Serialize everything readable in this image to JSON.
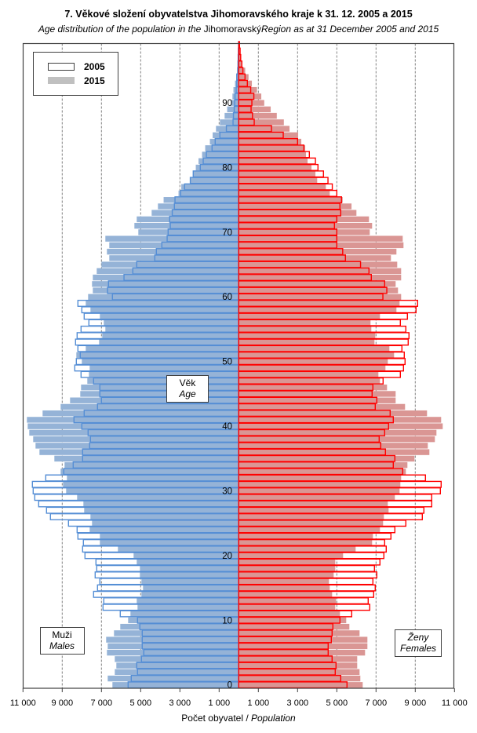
{
  "title": "7. Věkové složení obyvatelstva  Jihomoravského  kraje k 31. 12. 2005 a 2015",
  "subtitle": {
    "part1": "Age distribution of the population  in the ",
    "part2": "Jihomoravský",
    "part3": "Region as at 31 December 2005 and 2015"
  },
  "legend": {
    "item_2005": "2005",
    "item_2015": "2015"
  },
  "labels": {
    "age_cz": "Věk",
    "age_en": "Age",
    "males_cz": "Muži",
    "males_en": "Males",
    "females_cz": "Ženy",
    "females_en": "Females"
  },
  "xaxis": {
    "label_cz": "Počet obyvatel / ",
    "label_en": "Population"
  },
  "colors": {
    "male_2015_fill": "#95b3d7",
    "male_2005_outline": "#558ed5",
    "female_2015_fill": "#da9694",
    "female_2005_outline": "#ff0000",
    "legend_2015": "#c0c0c0"
  },
  "chart_data": {
    "type": "bar",
    "orientation": "horizontal population pyramid",
    "title": "7. Věkové složení obyvatelstva  Jihomoravského  kraje k 31. 12. 2005 a 2015",
    "xlabel": "Počet obyvatel / Population",
    "ylabel": "Věk / Age",
    "xlim": [
      -11000,
      11000
    ],
    "x_tick_labels_left": [
      "11 000",
      "9 000",
      "7 000",
      "5 000",
      "3 000",
      "1 000"
    ],
    "x_tick_values_left": [
      11000,
      9000,
      7000,
      5000,
      3000,
      1000
    ],
    "x_tick_labels_right": [
      "1 000",
      "3 000",
      "5 000",
      "7 000",
      "9 000",
      "11 000"
    ],
    "x_tick_values_right": [
      1000,
      3000,
      5000,
      7000,
      9000,
      11000
    ],
    "y_tick_labels": [
      "0",
      "10",
      "20",
      "30",
      "40",
      "50",
      "60",
      "70",
      "80",
      "90"
    ],
    "y_tick_values": [
      0,
      10,
      20,
      30,
      40,
      50,
      60,
      70,
      80,
      90
    ],
    "grid": "vertical dashed",
    "legend_position": "top-left",
    "ages": [
      0,
      1,
      2,
      3,
      4,
      5,
      6,
      7,
      8,
      9,
      10,
      11,
      12,
      13,
      14,
      15,
      16,
      17,
      18,
      19,
      20,
      21,
      22,
      23,
      24,
      25,
      26,
      27,
      28,
      29,
      30,
      31,
      32,
      33,
      34,
      35,
      36,
      37,
      38,
      39,
      40,
      41,
      42,
      43,
      44,
      45,
      46,
      47,
      48,
      49,
      50,
      51,
      52,
      53,
      54,
      55,
      56,
      57,
      58,
      59,
      60,
      61,
      62,
      63,
      64,
      65,
      66,
      67,
      68,
      69,
      70,
      71,
      72,
      73,
      74,
      75,
      76,
      77,
      78,
      79,
      80,
      81,
      82,
      83,
      84,
      85,
      86,
      87,
      88,
      89,
      90,
      91,
      92,
      93,
      94,
      95,
      96,
      97,
      98,
      99
    ],
    "series": [
      {
        "name": "2015",
        "sex": "Muži / Males",
        "style": "filled",
        "values": [
          6440,
          6680,
          6320,
          6240,
          6320,
          6720,
          6680,
          6760,
          6360,
          6040,
          5640,
          5520,
          5160,
          5200,
          4960,
          4880,
          4960,
          5040,
          5040,
          5200,
          5360,
          6160,
          7080,
          7080,
          7600,
          7480,
          7560,
          7880,
          7920,
          8240,
          8800,
          8960,
          8760,
          9080,
          8880,
          9400,
          10160,
          10360,
          10480,
          10680,
          10760,
          10800,
          10000,
          9080,
          8600,
          8080,
          8040,
          7720,
          7640,
          7600,
          8000,
          8280,
          7800,
          7120,
          6960,
          6800,
          6880,
          7080,
          7560,
          7800,
          7680,
          7440,
          7480,
          7440,
          7240,
          7000,
          6600,
          6720,
          6600,
          6800,
          5120,
          5320,
          5200,
          4440,
          4120,
          3830,
          3070,
          2930,
          2490,
          2320,
          2190,
          2050,
          1870,
          1710,
          1470,
          1330,
          1160,
          960,
          720,
          590,
          400,
          320,
          270,
          190,
          130,
          80,
          50,
          30,
          20,
          10
        ]
      },
      {
        "name": "2005",
        "sex": "Muži / Males",
        "style": "outline",
        "values": [
          5640,
          5480,
          5160,
          5200,
          4960,
          4840,
          4920,
          4920,
          4920,
          5040,
          5160,
          6040,
          6920,
          6880,
          7400,
          7200,
          7080,
          7320,
          7240,
          7280,
          7840,
          7960,
          7920,
          8200,
          8240,
          8680,
          9600,
          9800,
          10200,
          10400,
          10480,
          10520,
          9840,
          8920,
          8440,
          7960,
          7960,
          7600,
          7560,
          7680,
          8000,
          8400,
          7880,
          7200,
          7000,
          7080,
          7080,
          7400,
          8040,
          8360,
          8280,
          8080,
          8200,
          8320,
          8240,
          8040,
          7640,
          7880,
          8000,
          8200,
          6440,
          6690,
          6640,
          5850,
          5400,
          5200,
          4280,
          4200,
          3920,
          3650,
          3600,
          3490,
          3520,
          3390,
          3280,
          3250,
          2960,
          2760,
          2470,
          2320,
          1960,
          1810,
          1650,
          1360,
          1200,
          960,
          630,
          290,
          270,
          230,
          210,
          190,
          130,
          100,
          100,
          50,
          40,
          30,
          20,
          10
        ]
      },
      {
        "name": "2015",
        "sex": "Ženy / Females",
        "style": "filled",
        "values": [
          6320,
          6200,
          6160,
          6040,
          6040,
          6440,
          6560,
          6560,
          6160,
          5640,
          5480,
          5160,
          4920,
          4960,
          4760,
          4640,
          4600,
          4840,
          4920,
          4920,
          5320,
          5960,
          6800,
          6840,
          7200,
          7360,
          7400,
          7640,
          7600,
          7960,
          8200,
          8240,
          8280,
          8520,
          8600,
          8960,
          9720,
          9640,
          10000,
          10080,
          10400,
          10320,
          9600,
          8480,
          8000,
          8000,
          7560,
          7200,
          7120,
          7480,
          7600,
          7920,
          7680,
          6920,
          6960,
          6760,
          6720,
          7200,
          8040,
          8200,
          8280,
          8120,
          8000,
          8280,
          8280,
          8080,
          7760,
          8040,
          8400,
          8360,
          6680,
          6800,
          6640,
          6000,
          5750,
          5300,
          4640,
          4440,
          4000,
          3910,
          3710,
          3510,
          3430,
          3390,
          3190,
          3030,
          2590,
          2300,
          1940,
          1630,
          1300,
          1150,
          930,
          670,
          500,
          330,
          170,
          110,
          50,
          40
        ]
      },
      {
        "name": "2005",
        "sex": "Ženy / Females",
        "style": "outline",
        "values": [
          5520,
          5200,
          4920,
          4960,
          4760,
          4560,
          4560,
          4720,
          4760,
          4800,
          5160,
          5760,
          6680,
          6600,
          6880,
          6960,
          6840,
          7040,
          6920,
          7200,
          7400,
          7520,
          7440,
          7760,
          7960,
          8520,
          9360,
          9440,
          9840,
          9840,
          10280,
          10320,
          9520,
          8360,
          7880,
          7960,
          7480,
          7240,
          7160,
          7440,
          7640,
          7880,
          7720,
          6960,
          7040,
          6800,
          6840,
          7360,
          8240,
          8400,
          8480,
          8440,
          8320,
          8640,
          8680,
          8520,
          8240,
          8600,
          9040,
          9120,
          7350,
          7550,
          7440,
          6760,
          6640,
          6210,
          5440,
          5300,
          5000,
          5000,
          5000,
          4880,
          5000,
          5200,
          5160,
          5240,
          5000,
          4770,
          4550,
          4320,
          4040,
          3910,
          3600,
          3320,
          3000,
          2270,
          1670,
          790,
          700,
          630,
          670,
          770,
          610,
          440,
          320,
          210,
          160,
          100,
          70,
          40
        ]
      }
    ]
  }
}
